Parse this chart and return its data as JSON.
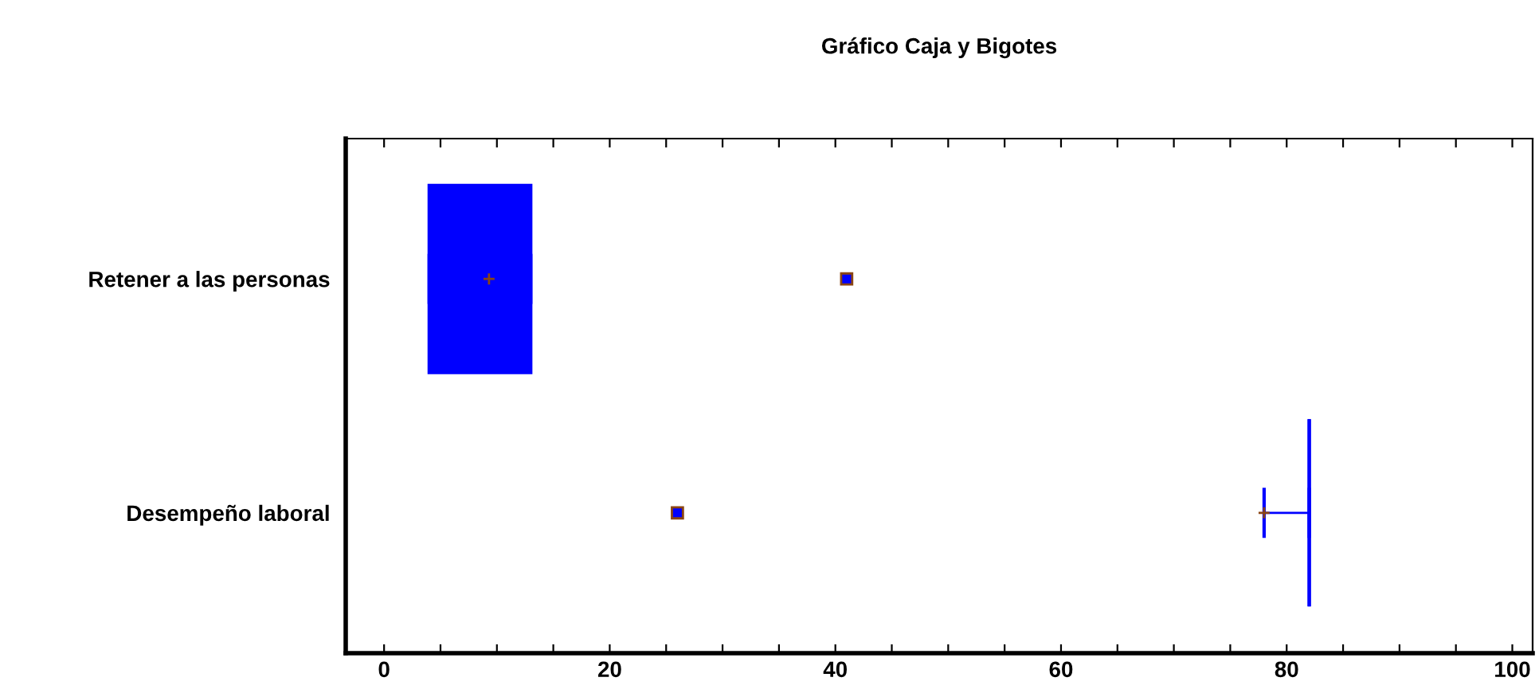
{
  "chart_data": {
    "type": "box",
    "title": "Gráfico Caja y Bigotes",
    "orientation": "horizontal",
    "categories": [
      "Retener a las personas",
      "Desempeño laboral"
    ],
    "boxes": [
      {
        "low": 4,
        "q1": 4,
        "median": 9,
        "q3": 13,
        "high": 13,
        "mean": 9.3,
        "outliers": [
          41
        ]
      },
      {
        "low": 78,
        "q1": 82,
        "median": 82,
        "q3": 82,
        "high": 82,
        "mean": 78,
        "outliers": [
          26
        ]
      }
    ],
    "color": "#0000ff",
    "xlim": [
      -3.4,
      101.8
    ],
    "xticks": [
      0,
      {
        "value": 5,
        "label": null
      },
      {
        "value": 10,
        "label": null
      },
      {
        "value": 15,
        "label": null
      },
      20,
      {
        "value": 25,
        "label": null
      },
      {
        "value": 30,
        "label": null
      },
      {
        "value": 35,
        "label": null
      },
      40,
      {
        "value": 45,
        "label": null
      },
      {
        "value": 50,
        "label": null
      },
      {
        "value": 55,
        "label": null
      },
      60,
      {
        "value": 65,
        "label": null
      },
      {
        "value": 70,
        "label": null
      },
      {
        "value": 75,
        "label": null
      },
      80,
      {
        "value": 85,
        "label": null
      },
      {
        "value": 90,
        "label": null
      },
      {
        "value": 95,
        "label": null
      },
      100
    ],
    "grid": false,
    "legend": false
  }
}
